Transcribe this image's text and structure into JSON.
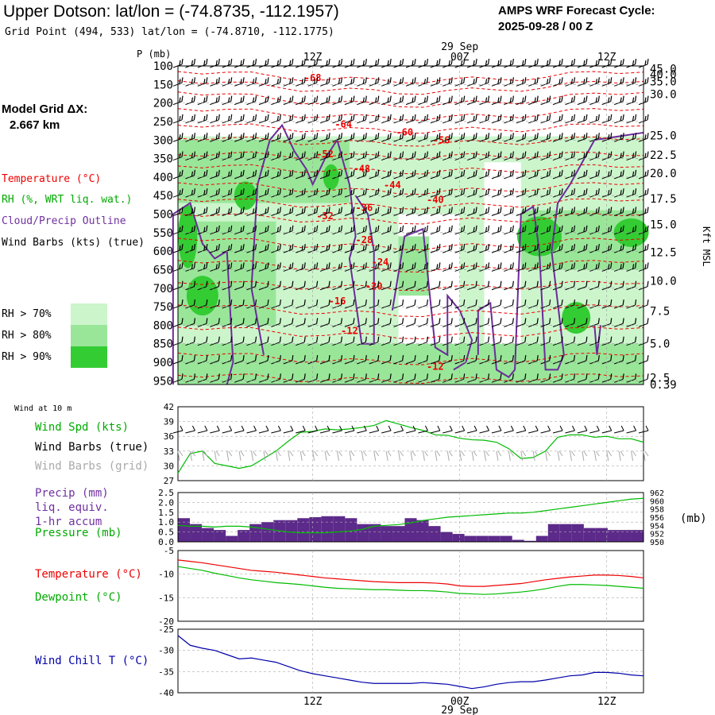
{
  "header": {
    "title": "Upper Dotson:  lat/lon = (-74.8735, -112.1957)",
    "grid_point": "Grid Point (494, 533) lat/lon = (-74.8710, -112.1775)",
    "forecast_label": "AMPS WRF Forecast Cycle:",
    "forecast_cycle": "2025-09-28 / 00  Z"
  },
  "sidebar": {
    "model_grid_label": "Model Grid ΔX:",
    "model_grid_value": "2.667 km",
    "legend_temperature": "Temperature (°C)",
    "legend_rh": "RH (%, WRT liq. wat.)",
    "legend_cloud": "Cloud/Precip Outline",
    "legend_wind": "Wind Barbs (kts) (true)",
    "rh70": "RH > 70%",
    "rh80": "RH > 80%",
    "rh90": "RH > 90%",
    "wind10_title": "Wind at 10 m",
    "wind_spd_label": "Wind Spd (kts)",
    "wind_barbs_true": "Wind Barbs (true)",
    "wind_barbs_grid": "Wind Barbs (grid)",
    "precip_label_1": "Precip (mm)",
    "precip_label_2": "liq. equiv.",
    "precip_label_3": "1-hr accum",
    "pressure_label": "Pressure (mb)",
    "pressure_unit": "(mb)",
    "temp_label": "Temperature (°C)",
    "dew_label": "Dewpoint (°C)",
    "chill_label": "Wind Chill T (°C)"
  },
  "colors": {
    "temperature": "#ee0000",
    "rh70": "#ccf5cc",
    "rh80": "#99e699",
    "rh90": "#33cc33",
    "cloud": "#6a2c9a",
    "precip": "#5c2a8a",
    "pressure": "#00bb00",
    "dewpoint": "#00bb00",
    "wind_chill": "#0000aa"
  },
  "chart_data": [
    {
      "type": "heatmap",
      "name_tag": "cross-section",
      "ylabel": "P (mb)",
      "y2label": "Kft MSL",
      "pressure_ticks": [
        100,
        150,
        200,
        250,
        300,
        350,
        400,
        450,
        500,
        550,
        600,
        650,
        700,
        750,
        800,
        850,
        900,
        950
      ],
      "height_ticks": [
        {
          "label": "45.0",
          "p": 108
        },
        {
          "label": "40.0",
          "p": 122
        },
        {
          "label": "35.0",
          "p": 142
        },
        {
          "label": "30.0",
          "p": 176
        },
        {
          "label": "25.0",
          "p": 288
        },
        {
          "label": "22.5",
          "p": 340
        },
        {
          "label": "20.0",
          "p": 390
        },
        {
          "label": "17.5",
          "p": 458
        },
        {
          "label": "15.0",
          "p": 528
        },
        {
          "label": "12.5",
          "p": 603
        },
        {
          "label": "10.0",
          "p": 680
        },
        {
          "label": "7.5",
          "p": 762
        },
        {
          "label": "5.0",
          "p": 850
        },
        {
          "label": "2.5",
          "p": 942
        },
        {
          "label": "0.39",
          "p": 1020
        }
      ],
      "top_labels": [
        {
          "label": "12Z",
          "x": 12
        },
        {
          "label": "00Z",
          "x": 24
        },
        {
          "label": "12Z",
          "x": 36
        }
      ],
      "date_label": "29 Sep",
      "x_range": [
        1,
        39
      ],
      "temp_labels": [
        {
          "label": "-68",
          "x": 12,
          "p": 132
        },
        {
          "label": "-64",
          "x": 14.5,
          "p": 258
        },
        {
          "label": "-60",
          "x": 19.5,
          "p": 279
        },
        {
          "label": "-56",
          "x": 22.5,
          "p": 300
        },
        {
          "label": "-52",
          "x": 13,
          "p": 338
        },
        {
          "label": "-48",
          "x": 16,
          "p": 378
        },
        {
          "label": "-44",
          "x": 18.5,
          "p": 422
        },
        {
          "label": "-40",
          "x": 22,
          "p": 461
        },
        {
          "label": "-36",
          "x": 16.2,
          "p": 483
        },
        {
          "label": "-32",
          "x": 13,
          "p": 505
        },
        {
          "label": "-28",
          "x": 16.2,
          "p": 570
        },
        {
          "label": "-24",
          "x": 17.5,
          "p": 630
        },
        {
          "label": "-20",
          "x": 17,
          "p": 695
        },
        {
          "label": "-16",
          "x": 14,
          "p": 735
        },
        {
          "label": "-12",
          "x": 15,
          "p": 815
        },
        {
          "label": "-12",
          "x": 22,
          "p": 912
        }
      ]
    },
    {
      "type": "line",
      "name_tag": "wind-speed",
      "ylim": [
        27,
        42
      ],
      "yticks": [
        27,
        30,
        33,
        36,
        39,
        42
      ],
      "x": [
        1,
        2,
        3,
        4,
        5,
        6,
        7,
        8,
        9,
        10,
        11,
        12,
        13,
        14,
        15,
        16,
        17,
        18,
        19,
        20,
        21,
        22,
        23,
        24,
        25,
        26,
        27,
        28,
        29,
        30,
        31,
        32,
        33,
        34,
        35,
        36,
        37,
        38,
        39
      ],
      "series": [
        {
          "values": [
            28.5,
            32.5,
            33,
            30.5,
            30,
            29.5,
            30,
            31.5,
            33,
            35,
            36.8,
            37,
            37.5,
            37.3,
            37.5,
            37.8,
            38.2,
            39.2,
            38.5,
            37.8,
            37.2,
            36.3,
            36.2,
            35.6,
            35.3,
            35.2,
            34.8,
            33.5,
            31.5,
            31.7,
            33,
            35.8,
            36.3,
            36.3,
            35.8,
            36,
            35.5,
            35.5,
            34.8
          ]
        }
      ]
    },
    {
      "type": "bar",
      "name_tag": "precip-pressure",
      "ylim": [
        0,
        2.5
      ],
      "yticks": [
        "0.0",
        "0.5",
        "1.0",
        "1.5",
        "2.0",
        "2.5"
      ],
      "y2ticks": [
        "950",
        "952",
        "954",
        "956",
        "958",
        "960",
        "962"
      ],
      "y2lim": [
        950,
        962
      ],
      "x": [
        1,
        2,
        3,
        4,
        5,
        6,
        7,
        8,
        9,
        10,
        11,
        12,
        13,
        14,
        15,
        16,
        17,
        18,
        19,
        20,
        21,
        22,
        23,
        24,
        25,
        26,
        27,
        28,
        29,
        30,
        31,
        32,
        33,
        34,
        35,
        36,
        37,
        38,
        39
      ],
      "precip": [
        1.2,
        0.9,
        0.7,
        0.6,
        0.3,
        0.6,
        0.9,
        1.0,
        1.1,
        1.1,
        1.2,
        1.25,
        1.3,
        1.3,
        1.2,
        0.9,
        0.9,
        0.8,
        0.8,
        1.2,
        1.1,
        0.8,
        0.5,
        0.4,
        0.3,
        0.3,
        0.3,
        0.3,
        0.1,
        0.05,
        0.3,
        0.9,
        0.9,
        0.9,
        0.7,
        0.7,
        0.6,
        0.6,
        0.6
      ],
      "pressure": [
        954,
        953.8,
        953.8,
        953.6,
        953.8,
        953.8,
        953.6,
        953.2,
        952.8,
        952.4,
        952.2,
        952.2,
        952.2,
        952.4,
        952.6,
        953,
        953.8,
        954,
        954.2,
        954.6,
        955.2,
        955.6,
        956,
        956.2,
        956.4,
        956.6,
        956.8,
        957,
        957,
        957.2,
        957.6,
        958,
        958.4,
        958.8,
        959.2,
        959.6,
        960,
        960.4,
        960.6
      ]
    },
    {
      "type": "line",
      "name_tag": "temp-dewpoint",
      "ylim": [
        -20,
        -5
      ],
      "yticks": [
        -20,
        -15,
        -10,
        -5
      ],
      "x": [
        1,
        2,
        3,
        4,
        5,
        6,
        7,
        8,
        9,
        10,
        11,
        12,
        13,
        14,
        15,
        16,
        17,
        18,
        19,
        20,
        21,
        22,
        23,
        24,
        25,
        26,
        27,
        28,
        29,
        30,
        31,
        32,
        33,
        34,
        35,
        36,
        37,
        38,
        39
      ],
      "series": [
        {
          "name": "Temperature",
          "values": [
            -7,
            -7.3,
            -7.6,
            -8,
            -8.4,
            -8.8,
            -9.2,
            -9.4,
            -9.6,
            -9.9,
            -10.2,
            -10.5,
            -10.8,
            -11,
            -11.2,
            -11.4,
            -11.6,
            -11.7,
            -11.8,
            -11.8,
            -11.8,
            -11.9,
            -12.1,
            -12.5,
            -12.6,
            -12.6,
            -12.4,
            -12.2,
            -12,
            -11.6,
            -11.2,
            -10.9,
            -10.6,
            -10.4,
            -10.2,
            -10.2,
            -10.3,
            -10.5,
            -10.8
          ]
        },
        {
          "name": "Dewpoint",
          "values": [
            -8.4,
            -8.8,
            -9.2,
            -9.8,
            -10.3,
            -10.8,
            -11.2,
            -11.5,
            -11.8,
            -12,
            -12.2,
            -12.5,
            -12.8,
            -13,
            -13.1,
            -13.2,
            -13.3,
            -13.3,
            -13.4,
            -13.5,
            -13.5,
            -13.6,
            -13.8,
            -14.1,
            -14.2,
            -14.3,
            -14.2,
            -14,
            -13.8,
            -13.5,
            -13.1,
            -12.6,
            -12.2,
            -12.2,
            -12.3,
            -12.4,
            -12.6,
            -12.8,
            -13
          ]
        }
      ]
    },
    {
      "type": "line",
      "name_tag": "wind-chill",
      "ylim": [
        -40,
        -25
      ],
      "yticks": [
        -40,
        -35,
        -30,
        -25
      ],
      "x": [
        1,
        2,
        3,
        4,
        5,
        6,
        7,
        8,
        9,
        10,
        11,
        12,
        13,
        14,
        15,
        16,
        17,
        18,
        19,
        20,
        21,
        22,
        23,
        24,
        25,
        26,
        27,
        28,
        29,
        30,
        31,
        32,
        33,
        34,
        35,
        36,
        37,
        38,
        39
      ],
      "series": [
        {
          "name": "Wind Chill",
          "values": [
            -26.5,
            -28.8,
            -29.5,
            -30,
            -31,
            -32,
            -31.8,
            -32.3,
            -32.8,
            -33.8,
            -34.8,
            -35.5,
            -36,
            -36.5,
            -37,
            -37.5,
            -37.8,
            -37.8,
            -37.8,
            -37.8,
            -37.6,
            -37.8,
            -38,
            -38.5,
            -39,
            -38.6,
            -38,
            -37.6,
            -37.4,
            -37.4,
            -37,
            -36.5,
            -36,
            -35.8,
            -35.2,
            -35.2,
            -35.4,
            -35.8,
            -36
          ]
        }
      ],
      "xticks": [
        {
          "label": "12Z",
          "x": 12
        },
        {
          "label": "00Z",
          "x": 24
        },
        {
          "label": "12Z",
          "x": 36
        }
      ],
      "date_label": "29 Sep"
    }
  ]
}
